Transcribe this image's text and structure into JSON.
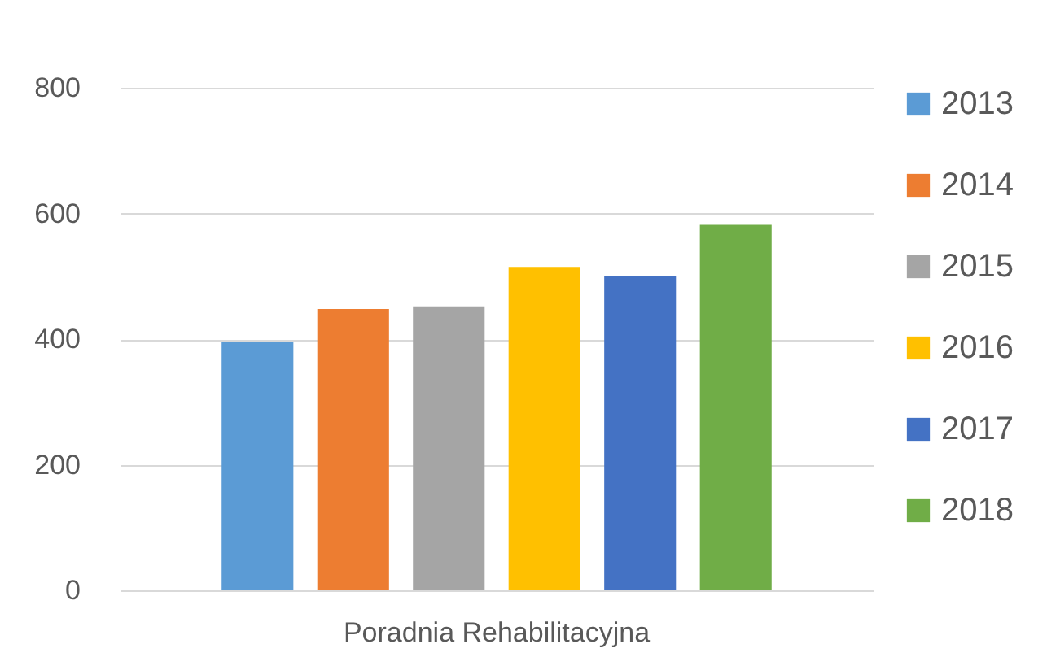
{
  "chart_data": {
    "type": "bar",
    "categories": [
      "Poradnia Rehabilitacyjna"
    ],
    "series": [
      {
        "name": "2013",
        "color": "#5b9bd5",
        "values": [
          395
        ]
      },
      {
        "name": "2014",
        "color": "#ed7d31",
        "values": [
          448
        ]
      },
      {
        "name": "2015",
        "color": "#a5a5a5",
        "values": [
          452
        ]
      },
      {
        "name": "2016",
        "color": "#ffc000",
        "values": [
          515
        ]
      },
      {
        "name": "2017",
        "color": "#4472c4",
        "values": [
          500
        ]
      },
      {
        "name": "2018",
        "color": "#70ad47",
        "values": [
          582
        ]
      }
    ],
    "ylim": [
      0,
      800
    ],
    "yticks": [
      0,
      200,
      400,
      600,
      800
    ],
    "grid": "y",
    "legend": "right"
  }
}
